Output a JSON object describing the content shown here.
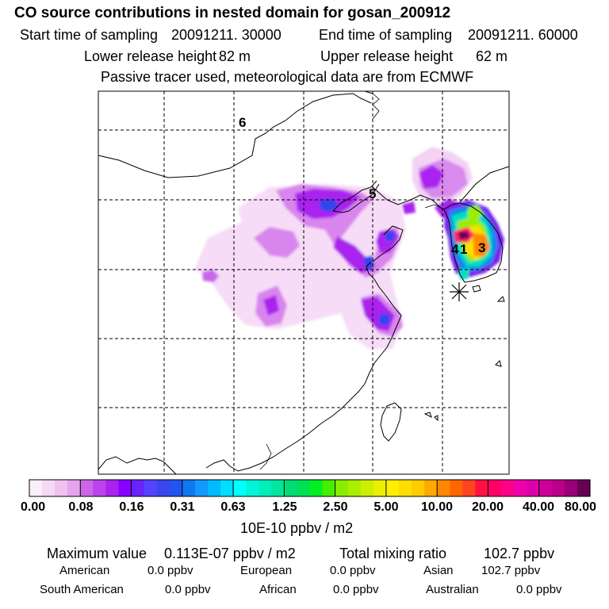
{
  "header": {
    "title": "CO  source contributions in nested domain for gosan_200912",
    "start_label": "Start time of sampling",
    "start_value": "20091211. 30000",
    "end_label": "End time of sampling",
    "end_value": "20091211. 60000",
    "lower_label": "Lower release height",
    "lower_value": "82 m",
    "upper_label": "Upper release height",
    "upper_value": "62 m",
    "note": "Passive tracer used, meteorological data are from ECMWF"
  },
  "map": {
    "contour_labels": [
      "6",
      "5",
      "4",
      "1",
      "3"
    ],
    "colorbar": {
      "colors": [
        "#fbeefb",
        "#f5d8f5",
        "#efc1f0",
        "#e6a3ee",
        "#cc66e6",
        "#bb44ee",
        "#aa22ee",
        "#8800ff",
        "#6a22ff",
        "#5544ff",
        "#3b44ee",
        "#2255ee",
        "#1177ee",
        "#1199ff",
        "#00bbff",
        "#00ddff",
        "#00ffff",
        "#00f5d8",
        "#00eebb",
        "#00e8a0",
        "#00dd77",
        "#00e055",
        "#00ee22",
        "#44ee00",
        "#88ee00",
        "#aaee00",
        "#ccee00",
        "#eeee00",
        "#ffee00",
        "#ffdd00",
        "#ffcc00",
        "#ffaa00",
        "#ff8800",
        "#ff6600",
        "#ff4422",
        "#ff1144",
        "#ff0066",
        "#ff0088",
        "#ee00aa",
        "#dd00aa",
        "#cc0099",
        "#bb0088",
        "#990077",
        "#660055"
      ],
      "tick_labels": [
        "0.00",
        "0.08",
        "0.16",
        "0.31",
        "0.63",
        "1.25",
        "2.50",
        "5.00",
        "10.00",
        "20.00",
        "40.00",
        "80.00"
      ],
      "units": "10E-10 ppbv / m2"
    }
  },
  "summary": {
    "max_label": "Maximum value",
    "max_value": "0.113E-07 ppbv / m2",
    "total_label": "Total mixing ratio",
    "total_value": "102.7 ppbv",
    "regions": [
      {
        "name": "American",
        "value": "0.0 ppbv"
      },
      {
        "name": "European",
        "value": "0.0 ppbv"
      },
      {
        "name": "Asian",
        "value": "102.7 ppbv"
      },
      {
        "name": "South American",
        "value": "0.0 ppbv"
      },
      {
        "name": "African",
        "value": "0.0 ppbv"
      },
      {
        "name": "Australian",
        "value": "0.0 ppbv"
      }
    ]
  }
}
